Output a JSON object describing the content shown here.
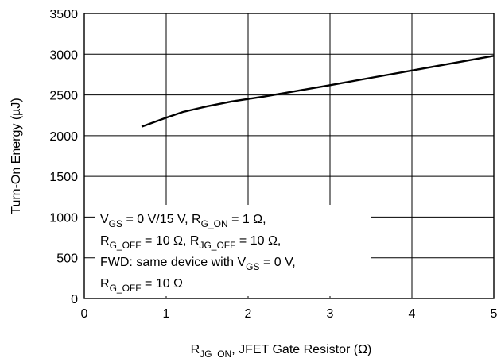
{
  "chart_data": {
    "type": "line",
    "title": "",
    "xlabel": {
      "main": "R",
      "sub": "JG_ON",
      "rest": ", JFET Gate Resistor (Ω)"
    },
    "ylabel": "Turn-On Energy (µJ)",
    "xlim": [
      0,
      5
    ],
    "ylim": [
      0,
      3500
    ],
    "grid": true,
    "x_ticks": [
      "0",
      "1",
      "2",
      "3",
      "4",
      "5"
    ],
    "y_ticks": [
      "0",
      "500",
      "1000",
      "1500",
      "2000",
      "2500",
      "3000",
      "3500"
    ],
    "series": [
      {
        "x": [
          0.7,
          1.0,
          1.2,
          1.5,
          1.8,
          2.2,
          2.6,
          3.0,
          3.5,
          4.0,
          4.5,
          5.0
        ],
        "y": [
          2110,
          2220,
          2290,
          2360,
          2420,
          2480,
          2550,
          2620,
          2710,
          2800,
          2890,
          2980
        ]
      }
    ],
    "annotation": {
      "line1": [
        {
          "t": "V"
        },
        {
          "t": "GS",
          "sub": true
        },
        {
          "t": " = 0 V/15 V, R"
        },
        {
          "t": "G_ON",
          "sub": true
        },
        {
          "t": " = 1 Ω,"
        }
      ],
      "line2": [
        {
          "t": "R"
        },
        {
          "t": "G_OFF",
          "sub": true
        },
        {
          "t": " = 10 Ω, R"
        },
        {
          "t": "JG_OFF",
          "sub": true
        },
        {
          "t": " = 10 Ω,"
        }
      ],
      "line3": [
        {
          "t": "FWD: same device with V"
        },
        {
          "t": "GS",
          "sub": true
        },
        {
          "t": " = 0 V,"
        }
      ],
      "line4": [
        {
          "t": "R"
        },
        {
          "t": "G_OFF",
          "sub": true
        },
        {
          "t": " = 10 Ω"
        }
      ]
    }
  }
}
